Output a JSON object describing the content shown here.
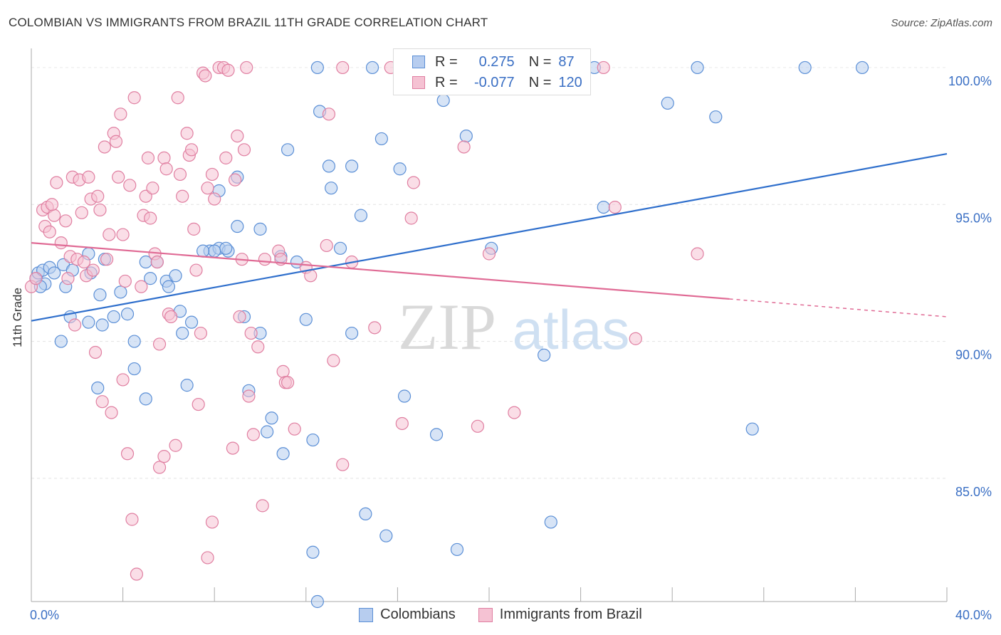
{
  "title": "COLOMBIAN VS IMMIGRANTS FROM BRAZIL 11TH GRADE CORRELATION CHART",
  "source": "Source: ZipAtlas.com",
  "watermark": {
    "zip": "ZIP",
    "atlas": "atlas"
  },
  "legend": {
    "r_label": "R =",
    "n_label": "N =",
    "series": [
      {
        "r": "0.275",
        "n": "87"
      },
      {
        "r": "-0.077",
        "n": "120"
      }
    ]
  },
  "chart_data": {
    "type": "scatter",
    "ylabel": "11th Grade",
    "xlabel": "",
    "xlim": [
      0,
      40
    ],
    "ylim": [
      80.5,
      100.7
    ],
    "x_tick_labels": [
      {
        "x": 0,
        "label": "0.0%"
      },
      {
        "x": 40,
        "label": "40.0%"
      }
    ],
    "y_tick_labels": [
      {
        "y": 100,
        "label": "100.0%"
      },
      {
        "y": 95,
        "label": "95.0%"
      },
      {
        "y": 90,
        "label": "90.0%"
      },
      {
        "y": 85,
        "label": "85.0%"
      }
    ],
    "grid": true,
    "legend_position": "top-center",
    "series": [
      {
        "name": "Colombians",
        "color": "#5b8fd6",
        "fill": "#b7cdef",
        "trend": {
          "x0": 0,
          "y0": 90.75,
          "x1": 40,
          "y1": 96.85
        },
        "points": [
          [
            0.2,
            92.3
          ],
          [
            0.3,
            92.5
          ],
          [
            0.5,
            92.6
          ],
          [
            0.6,
            92.1
          ],
          [
            0.4,
            92.0
          ],
          [
            0.8,
            92.7
          ],
          [
            1.0,
            92.5
          ],
          [
            1.4,
            92.8
          ],
          [
            1.5,
            92.0
          ],
          [
            1.8,
            92.6
          ],
          [
            1.7,
            90.9
          ],
          [
            1.3,
            90.0
          ],
          [
            2.5,
            93.2
          ],
          [
            2.6,
            92.5
          ],
          [
            3.0,
            91.7
          ],
          [
            3.2,
            93.0
          ],
          [
            3.9,
            91.8
          ],
          [
            4.2,
            91.0
          ],
          [
            3.6,
            90.9
          ],
          [
            2.5,
            90.7
          ],
          [
            3.1,
            90.6
          ],
          [
            4.5,
            90.0
          ],
          [
            4.5,
            89.0
          ],
          [
            5.0,
            92.9
          ],
          [
            5.2,
            92.3
          ],
          [
            5.5,
            92.9
          ],
          [
            5.9,
            92.2
          ],
          [
            6.0,
            92.0
          ],
          [
            6.3,
            92.4
          ],
          [
            6.5,
            91.1
          ],
          [
            7.0,
            90.7
          ],
          [
            6.6,
            90.3
          ],
          [
            6.8,
            88.4
          ],
          [
            5.0,
            87.9
          ],
          [
            2.9,
            88.3
          ],
          [
            7.8,
            93.3
          ],
          [
            8.2,
            93.4
          ],
          [
            8.6,
            93.3
          ],
          [
            8.5,
            93.4
          ],
          [
            8.2,
            95.5
          ],
          [
            8.0,
            93.3
          ],
          [
            7.5,
            93.3
          ],
          [
            9.0,
            96.0
          ],
          [
            9.3,
            90.9
          ],
          [
            9.5,
            88.2
          ],
          [
            10.0,
            94.1
          ],
          [
            9.0,
            94.2
          ],
          [
            10.0,
            90.3
          ],
          [
            10.3,
            86.7
          ],
          [
            10.5,
            87.2
          ],
          [
            10.9,
            93.1
          ],
          [
            11.0,
            85.9
          ],
          [
            11.6,
            92.9
          ],
          [
            11.2,
            97.0
          ],
          [
            12.5,
            100.0
          ],
          [
            12.6,
            98.4
          ],
          [
            12.0,
            90.8
          ],
          [
            12.3,
            86.4
          ],
          [
            12.3,
            82.3
          ],
          [
            13.0,
            96.4
          ],
          [
            13.1,
            95.6
          ],
          [
            13.5,
            93.4
          ],
          [
            14.0,
            96.4
          ],
          [
            14.4,
            94.6
          ],
          [
            14.0,
            90.3
          ],
          [
            14.6,
            83.7
          ],
          [
            14.9,
            100.0
          ],
          [
            15.3,
            97.4
          ],
          [
            16.1,
            96.3
          ],
          [
            16.3,
            88.0
          ],
          [
            15.5,
            82.9
          ],
          [
            16.7,
            100.0
          ],
          [
            17.7,
            86.6
          ],
          [
            18.0,
            98.8
          ],
          [
            18.6,
            82.4
          ],
          [
            19.0,
            97.5
          ],
          [
            20.1,
            93.4
          ],
          [
            12.5,
            80.5
          ],
          [
            22.4,
            89.5
          ],
          [
            22.7,
            83.4
          ],
          [
            24.6,
            100.0
          ],
          [
            25.0,
            94.9
          ],
          [
            27.8,
            98.7
          ],
          [
            29.1,
            100.0
          ],
          [
            29.9,
            98.2
          ],
          [
            31.5,
            86.8
          ],
          [
            33.8,
            100.0
          ],
          [
            36.3,
            100.0
          ]
        ]
      },
      {
        "name": "Immigrants from Brazil",
        "color": "#e07fa1",
        "fill": "#f5c2d3",
        "trend": {
          "x0": 0,
          "y0": 93.6,
          "x1": 30.5,
          "y1": 91.55
        },
        "trend_dash": {
          "x0": 30.5,
          "y0": 91.55,
          "x1": 40,
          "y1": 90.9
        },
        "points": [
          [
            0.0,
            92.0
          ],
          [
            0.2,
            92.3
          ],
          [
            0.5,
            94.8
          ],
          [
            0.6,
            94.2
          ],
          [
            0.7,
            94.9
          ],
          [
            0.8,
            94.0
          ],
          [
            1.0,
            94.6
          ],
          [
            1.1,
            95.8
          ],
          [
            0.9,
            95.0
          ],
          [
            1.3,
            93.6
          ],
          [
            1.5,
            94.4
          ],
          [
            1.6,
            92.3
          ],
          [
            1.8,
            96.0
          ],
          [
            1.7,
            93.1
          ],
          [
            1.9,
            90.6
          ],
          [
            2.0,
            93.0
          ],
          [
            2.1,
            95.9
          ],
          [
            2.2,
            94.7
          ],
          [
            2.3,
            92.9
          ],
          [
            2.4,
            92.4
          ],
          [
            2.5,
            96.0
          ],
          [
            2.6,
            95.2
          ],
          [
            2.7,
            92.6
          ],
          [
            2.9,
            95.3
          ],
          [
            3.0,
            94.8
          ],
          [
            2.8,
            89.6
          ],
          [
            3.1,
            87.8
          ],
          [
            3.2,
            97.1
          ],
          [
            3.3,
            93.0
          ],
          [
            3.4,
            93.9
          ],
          [
            3.5,
            87.4
          ],
          [
            3.6,
            97.6
          ],
          [
            3.7,
            97.3
          ],
          [
            3.8,
            96.0
          ],
          [
            3.9,
            98.3
          ],
          [
            4.0,
            93.9
          ],
          [
            4.1,
            92.2
          ],
          [
            4.0,
            88.6
          ],
          [
            4.2,
            85.9
          ],
          [
            4.3,
            95.7
          ],
          [
            4.5,
            98.9
          ],
          [
            4.4,
            83.5
          ],
          [
            4.6,
            81.5
          ],
          [
            4.8,
            92.0
          ],
          [
            4.9,
            94.6
          ],
          [
            5.0,
            95.3
          ],
          [
            5.1,
            96.7
          ],
          [
            5.2,
            94.5
          ],
          [
            5.3,
            95.6
          ],
          [
            5.4,
            93.2
          ],
          [
            5.5,
            92.9
          ],
          [
            5.6,
            89.9
          ],
          [
            5.6,
            85.4
          ],
          [
            5.8,
            96.7
          ],
          [
            5.9,
            96.3
          ],
          [
            6.0,
            91.0
          ],
          [
            6.1,
            90.9
          ],
          [
            6.3,
            86.2
          ],
          [
            6.4,
            98.9
          ],
          [
            6.5,
            96.1
          ],
          [
            6.6,
            95.3
          ],
          [
            6.8,
            97.6
          ],
          [
            6.9,
            96.8
          ],
          [
            7.0,
            97.0
          ],
          [
            7.1,
            94.1
          ],
          [
            7.2,
            92.6
          ],
          [
            7.3,
            87.7
          ],
          [
            7.4,
            90.3
          ],
          [
            7.5,
            99.8
          ],
          [
            7.6,
            99.7
          ],
          [
            7.7,
            95.6
          ],
          [
            7.7,
            82.1
          ],
          [
            7.9,
            96.1
          ],
          [
            7.9,
            83.4
          ],
          [
            8.0,
            95.2
          ],
          [
            8.2,
            100.0
          ],
          [
            8.4,
            100.0
          ],
          [
            8.6,
            99.9
          ],
          [
            8.9,
            95.9
          ],
          [
            8.8,
            86.1
          ],
          [
            8.5,
            96.7
          ],
          [
            9.0,
            97.5
          ],
          [
            9.1,
            90.9
          ],
          [
            9.2,
            93.0
          ],
          [
            9.4,
            100.0
          ],
          [
            9.5,
            88.0
          ],
          [
            9.6,
            90.3
          ],
          [
            9.7,
            86.6
          ],
          [
            9.9,
            89.8
          ],
          [
            10.1,
            84.0
          ],
          [
            10.2,
            93.0
          ],
          [
            10.8,
            93.3
          ],
          [
            10.9,
            93.0
          ],
          [
            11.0,
            88.9
          ],
          [
            11.1,
            88.5
          ],
          [
            11.2,
            88.5
          ],
          [
            11.5,
            86.8
          ],
          [
            12.0,
            92.7
          ],
          [
            12.2,
            92.4
          ],
          [
            12.9,
            93.5
          ],
          [
            13.0,
            98.3
          ],
          [
            13.2,
            89.3
          ],
          [
            13.6,
            85.5
          ],
          [
            13.6,
            100.0
          ],
          [
            14.0,
            92.9
          ],
          [
            15.0,
            90.5
          ],
          [
            15.7,
            100.0
          ],
          [
            16.2,
            87.0
          ],
          [
            16.6,
            94.5
          ],
          [
            16.7,
            95.8
          ],
          [
            18.9,
            97.1
          ],
          [
            20.0,
            93.2
          ],
          [
            21.1,
            87.4
          ],
          [
            25.5,
            94.9
          ],
          [
            26.4,
            90.1
          ],
          [
            25.0,
            100.0
          ],
          [
            29.1,
            93.2
          ],
          [
            19.5,
            86.9
          ],
          [
            5.8,
            85.8
          ],
          [
            9.3,
            97.0
          ]
        ]
      }
    ]
  }
}
